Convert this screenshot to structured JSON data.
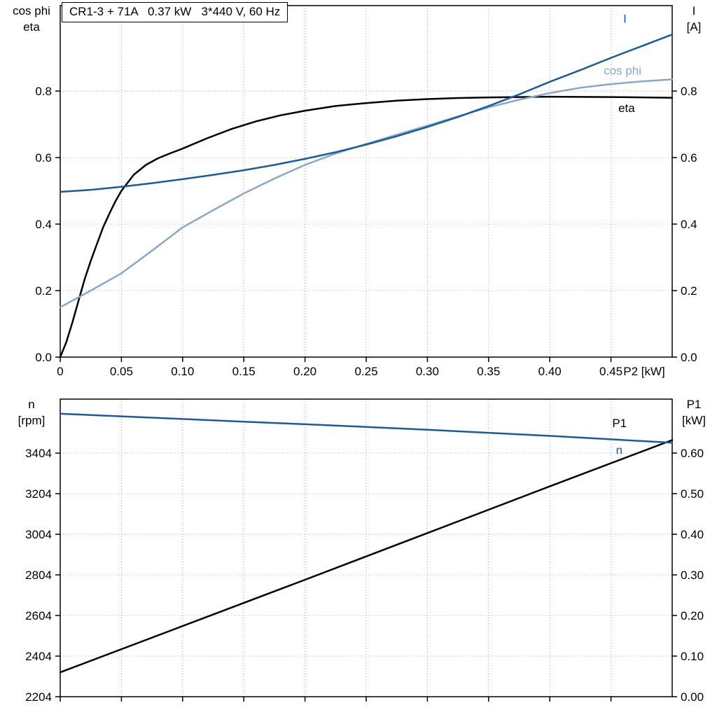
{
  "title_box": {
    "text": "CR1-3 + 71A   0.37 kW   3*440 V, 60 Hz"
  },
  "colors": {
    "black": "#000000",
    "dark_blue": "#1b5a9b",
    "light_blue": "#8aa7c7",
    "grid": "#aaaaaa",
    "frame": "#000000",
    "background": "#ffffff"
  },
  "chart_data": [
    {
      "type": "line",
      "panel": "top",
      "title": "CR1-3 + 71A   0.37 kW   3*440 V, 60 Hz",
      "x_axis": {
        "label": "P2 [kW]",
        "range": [
          0,
          0.5
        ],
        "ticks": [
          0,
          0.05,
          0.1,
          0.15,
          0.2,
          0.25,
          0.3,
          0.35,
          0.4,
          0.45
        ],
        "tick_labels": [
          "0",
          "0.05",
          "0.10",
          "0.15",
          "0.20",
          "0.25",
          "0.30",
          "0.35",
          "0.40",
          "0.45"
        ],
        "show_tick_labels": true
      },
      "left_axis": {
        "label_lines": [
          "cos phi",
          "eta"
        ],
        "range": [
          0,
          1.057
        ],
        "ticks": [
          0,
          0.2,
          0.4,
          0.6,
          0.8
        ],
        "tick_labels": [
          "0.0",
          "0.2",
          "0.4",
          "0.6",
          "0.8"
        ]
      },
      "right_axis": {
        "label_lines": [
          "I",
          "[A]"
        ],
        "range": [
          0,
          1.057
        ],
        "ticks": [
          0,
          0.2,
          0.4,
          0.6,
          0.8
        ],
        "tick_labels": [
          "0.0",
          "0.2",
          "0.4",
          "0.6",
          "0.8"
        ]
      },
      "series": [
        {
          "name": "eta",
          "axis": "left",
          "color_key": "black",
          "points": [
            [
              0,
              0
            ],
            [
              0.005,
              0.045
            ],
            [
              0.01,
              0.105
            ],
            [
              0.015,
              0.17
            ],
            [
              0.02,
              0.235
            ],
            [
              0.025,
              0.29
            ],
            [
              0.03,
              0.34
            ],
            [
              0.035,
              0.39
            ],
            [
              0.04,
              0.43
            ],
            [
              0.045,
              0.468
            ],
            [
              0.05,
              0.5
            ],
            [
              0.06,
              0.548
            ],
            [
              0.07,
              0.578
            ],
            [
              0.08,
              0.598
            ],
            [
              0.09,
              0.613
            ],
            [
              0.1,
              0.627
            ],
            [
              0.12,
              0.658
            ],
            [
              0.14,
              0.686
            ],
            [
              0.16,
              0.709
            ],
            [
              0.18,
              0.727
            ],
            [
              0.2,
              0.741
            ],
            [
              0.225,
              0.755
            ],
            [
              0.25,
              0.764
            ],
            [
              0.275,
              0.771
            ],
            [
              0.3,
              0.776
            ],
            [
              0.325,
              0.779
            ],
            [
              0.35,
              0.781
            ],
            [
              0.4,
              0.783
            ],
            [
              0.45,
              0.782
            ],
            [
              0.5,
              0.78
            ]
          ],
          "label": {
            "text": "eta",
            "x": 0.456,
            "y": 0.737
          }
        },
        {
          "name": "cos phi",
          "axis": "left",
          "color_key": "light_blue",
          "points": [
            [
              0,
              0.15
            ],
            [
              0.025,
              0.2
            ],
            [
              0.05,
              0.252
            ],
            [
              0.075,
              0.32
            ],
            [
              0.1,
              0.39
            ],
            [
              0.125,
              0.442
            ],
            [
              0.15,
              0.492
            ],
            [
              0.175,
              0.537
            ],
            [
              0.2,
              0.578
            ],
            [
              0.225,
              0.612
            ],
            [
              0.25,
              0.641
            ],
            [
              0.275,
              0.669
            ],
            [
              0.3,
              0.696
            ],
            [
              0.325,
              0.724
            ],
            [
              0.35,
              0.751
            ],
            [
              0.375,
              0.774
            ],
            [
              0.4,
              0.794
            ],
            [
              0.425,
              0.81
            ],
            [
              0.45,
              0.821
            ],
            [
              0.475,
              0.829
            ],
            [
              0.5,
              0.835
            ]
          ],
          "label": {
            "text": "cos phi",
            "x": 0.444,
            "y": 0.85
          }
        },
        {
          "name": "I",
          "axis": "left",
          "color_key": "dark_blue",
          "points": [
            [
              0,
              0.497
            ],
            [
              0.025,
              0.503
            ],
            [
              0.05,
              0.512
            ],
            [
              0.075,
              0.523
            ],
            [
              0.1,
              0.535
            ],
            [
              0.125,
              0.548
            ],
            [
              0.15,
              0.562
            ],
            [
              0.175,
              0.578
            ],
            [
              0.2,
              0.596
            ],
            [
              0.225,
              0.616
            ],
            [
              0.25,
              0.639
            ],
            [
              0.275,
              0.664
            ],
            [
              0.3,
              0.692
            ],
            [
              0.325,
              0.722
            ],
            [
              0.35,
              0.755
            ],
            [
              0.375,
              0.79
            ],
            [
              0.4,
              0.828
            ],
            [
              0.425,
              0.863
            ],
            [
              0.45,
              0.9
            ],
            [
              0.475,
              0.935
            ],
            [
              0.5,
              0.97
            ]
          ],
          "label": {
            "text": "I",
            "x": 0.46,
            "y": 1.005
          }
        }
      ]
    },
    {
      "type": "line",
      "panel": "bottom",
      "title": "",
      "x_axis": {
        "label": "",
        "range": [
          0,
          0.5
        ],
        "ticks": [
          0,
          0.05,
          0.1,
          0.15,
          0.2,
          0.25,
          0.3,
          0.35,
          0.4,
          0.45
        ],
        "tick_labels": [],
        "show_tick_labels": false
      },
      "left_axis": {
        "label_lines": [
          "n",
          "[rpm]"
        ],
        "range": [
          2204,
          3670
        ],
        "ticks": [
          2204,
          2404,
          2604,
          2804,
          3004,
          3204,
          3404
        ],
        "tick_labels": [
          "2204",
          "2404",
          "2604",
          "2804",
          "3004",
          "3204",
          "3404"
        ]
      },
      "right_axis": {
        "label_lines": [
          "P1",
          "[kW]"
        ],
        "range": [
          0,
          0.7328
        ],
        "ticks": [
          0,
          0.1,
          0.2,
          0.3,
          0.4,
          0.5,
          0.6
        ],
        "tick_labels": [
          "0.00",
          "0.10",
          "0.20",
          "0.30",
          "0.40",
          "0.50",
          "0.60"
        ]
      },
      "series": [
        {
          "name": "P1",
          "axis": "right",
          "color_key": "black",
          "points": [
            [
              0,
              0.06
            ],
            [
              0.1,
              0.174
            ],
            [
              0.2,
              0.288
            ],
            [
              0.3,
              0.403
            ],
            [
              0.4,
              0.518
            ],
            [
              0.5,
              0.632
            ]
          ],
          "label": {
            "text": "P1",
            "x": 0.451,
            "y": 0.664
          }
        },
        {
          "name": "n",
          "axis": "left",
          "color_key": "dark_blue",
          "points": [
            [
              0,
              3598
            ],
            [
              0.05,
              3585
            ],
            [
              0.1,
              3572
            ],
            [
              0.15,
              3559
            ],
            [
              0.2,
              3546
            ],
            [
              0.25,
              3533
            ],
            [
              0.3,
              3519
            ],
            [
              0.35,
              3504
            ],
            [
              0.4,
              3489
            ],
            [
              0.45,
              3472
            ],
            [
              0.5,
              3455
            ]
          ],
          "label": {
            "text": "n",
            "x": 0.454,
            "y": 3400
          }
        }
      ]
    }
  ]
}
